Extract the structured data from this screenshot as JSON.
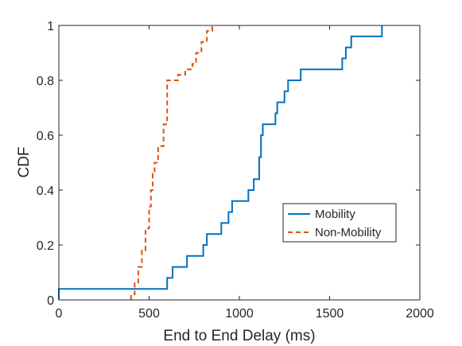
{
  "chart_data": {
    "type": "line",
    "xlabel": "End to End Delay (ms)",
    "ylabel": "CDF",
    "xlim": [
      0,
      2000
    ],
    "ylim": [
      0,
      1
    ],
    "x_ticks": [
      "0",
      "500",
      "1000",
      "1500",
      "2000"
    ],
    "y_ticks": [
      "0",
      "0.2",
      "0.4",
      "0.6",
      "0.8",
      "1"
    ],
    "grid": false,
    "legend_position": "center-right",
    "series": [
      {
        "name": "Mobility",
        "style": "solid-step",
        "color": "#0072BD",
        "x": [
          0,
          0,
          600,
          600,
          630,
          630,
          710,
          710,
          800,
          800,
          820,
          820,
          900,
          900,
          940,
          940,
          960,
          960,
          1050,
          1050,
          1080,
          1080,
          1110,
          1110,
          1120,
          1120,
          1130,
          1130,
          1200,
          1200,
          1210,
          1210,
          1250,
          1250,
          1270,
          1270,
          1340,
          1340,
          1570,
          1570,
          1590,
          1590,
          1620,
          1620,
          1790,
          1790
        ],
        "y": [
          0,
          0.04,
          0.04,
          0.08,
          0.08,
          0.12,
          0.12,
          0.16,
          0.16,
          0.2,
          0.2,
          0.24,
          0.24,
          0.28,
          0.28,
          0.32,
          0.32,
          0.36,
          0.36,
          0.4,
          0.4,
          0.44,
          0.44,
          0.52,
          0.52,
          0.6,
          0.6,
          0.64,
          0.64,
          0.68,
          0.68,
          0.72,
          0.72,
          0.76,
          0.76,
          0.8,
          0.8,
          0.84,
          0.84,
          0.88,
          0.88,
          0.92,
          0.92,
          0.96,
          0.96,
          1.0
        ]
      },
      {
        "name": "Non-Mobility",
        "style": "dashed-step",
        "color": "#D95319",
        "x": [
          400,
          400,
          420,
          420,
          440,
          440,
          460,
          460,
          480,
          480,
          500,
          500,
          510,
          510,
          520,
          520,
          530,
          530,
          550,
          550,
          580,
          580,
          600,
          600,
          660,
          660,
          700,
          700,
          740,
          740,
          760,
          760,
          790,
          790,
          820,
          820,
          850,
          850,
          860
        ],
        "y": [
          0,
          0.02,
          0.02,
          0.06,
          0.06,
          0.12,
          0.12,
          0.18,
          0.18,
          0.26,
          0.26,
          0.34,
          0.34,
          0.4,
          0.4,
          0.46,
          0.46,
          0.5,
          0.5,
          0.56,
          0.56,
          0.64,
          0.64,
          0.8,
          0.8,
          0.82,
          0.82,
          0.84,
          0.84,
          0.86,
          0.86,
          0.9,
          0.9,
          0.94,
          0.94,
          0.98,
          0.98,
          1.0,
          1.0
        ]
      }
    ]
  }
}
